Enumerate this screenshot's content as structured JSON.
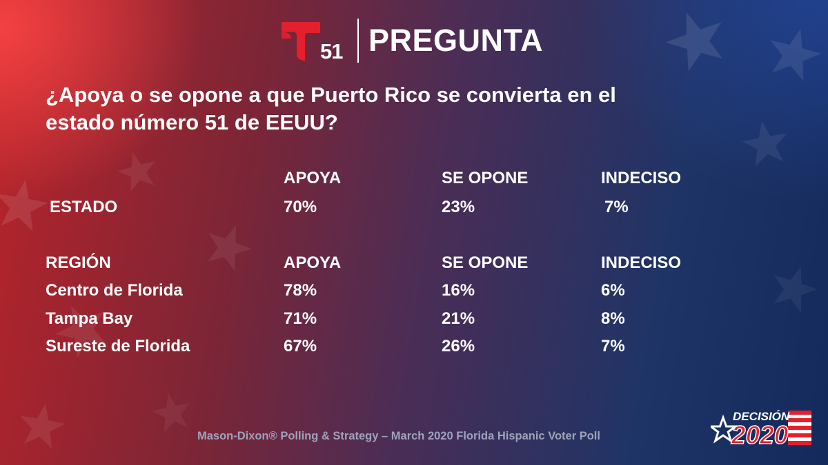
{
  "header": {
    "logo_number": "51",
    "title": "PREGUNTA"
  },
  "question": "¿Apoya o se opone a que Puerto Rico se convierta en el estado número 51 de EEUU?",
  "estado_table": {
    "columns": [
      "APOYA",
      "SE OPONE",
      "INDECISO"
    ],
    "row": {
      "label": "ESTADO",
      "values": [
        "70%",
        "23%",
        "7%"
      ]
    }
  },
  "region_table": {
    "header_label": "REGIÓN",
    "columns": [
      "APOYA",
      "SE OPONE",
      "INDECISO"
    ],
    "rows": [
      {
        "label": "Centro de Florida",
        "values": [
          "78%",
          "16%",
          "6%"
        ]
      },
      {
        "label": "Tampa Bay",
        "values": [
          "71%",
          "21%",
          "8%"
        ]
      },
      {
        "label": "Sureste de Florida",
        "values": [
          "67%",
          "26%",
          "7%"
        ]
      }
    ]
  },
  "footer": "Mason-Dixon® Polling & Strategy – March 2020 Florida Hispanic Voter Poll",
  "badge": {
    "top": "DECISIÓN",
    "bottom": "2020"
  },
  "colors": {
    "brand_red": "#e4202c",
    "background_red": "#b8242a",
    "background_blue": "#142a5c",
    "footer_gray": "#9ea3ba"
  },
  "icons": [
    "telemundo-logo-icon",
    "star-icon",
    "flag-stripes-icon"
  ]
}
